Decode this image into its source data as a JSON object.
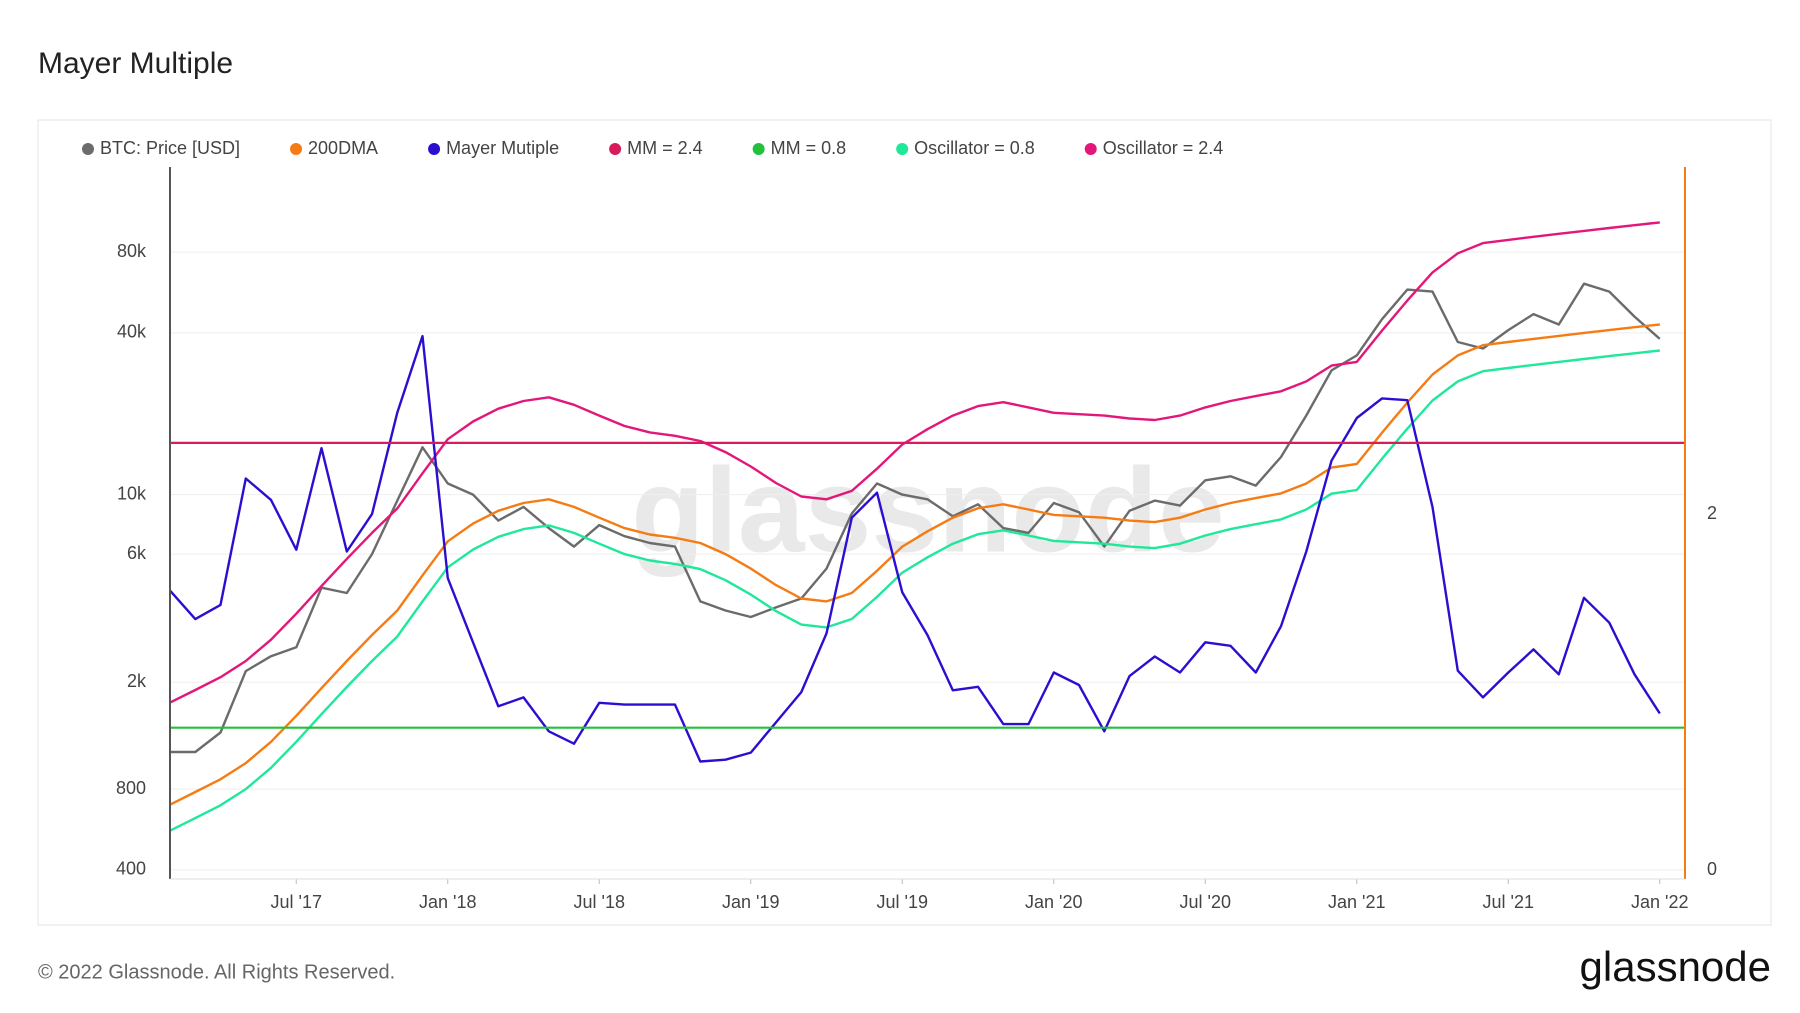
{
  "chart_data": {
    "type": "line",
    "title": "Mayer Multiple",
    "watermark": "glassnode",
    "footer": "© 2022 Glassnode. All Rights Reserved.",
    "logo": "glassnode",
    "log_y": true,
    "grid": true,
    "x": [
      "2017-02",
      "2017-03",
      "2017-04",
      "2017-05",
      "2017-06",
      "2017-07",
      "2017-08",
      "2017-09",
      "2017-10",
      "2017-11",
      "2017-12",
      "2018-01",
      "2018-02",
      "2018-03",
      "2018-04",
      "2018-05",
      "2018-06",
      "2018-07",
      "2018-08",
      "2018-09",
      "2018-10",
      "2018-11",
      "2018-12",
      "2019-01",
      "2019-02",
      "2019-03",
      "2019-04",
      "2019-05",
      "2019-06",
      "2019-07",
      "2019-08",
      "2019-09",
      "2019-10",
      "2019-11",
      "2019-12",
      "2020-01",
      "2020-02",
      "2020-03",
      "2020-04",
      "2020-05",
      "2020-06",
      "2020-07",
      "2020-08",
      "2020-09",
      "2020-10",
      "2020-11",
      "2020-12",
      "2021-01",
      "2021-02",
      "2021-03",
      "2021-04",
      "2021-05",
      "2021-06",
      "2021-07",
      "2021-08",
      "2021-09",
      "2021-10",
      "2021-11",
      "2021-12",
      "2022-01"
    ],
    "xlim": [
      "2017-02",
      "2022-02"
    ],
    "xticks": [
      {
        "value": "2017-07",
        "label": "Jul '17"
      },
      {
        "value": "2018-01",
        "label": "Jan '18"
      },
      {
        "value": "2018-07",
        "label": "Jul '18"
      },
      {
        "value": "2019-01",
        "label": "Jan '19"
      },
      {
        "value": "2019-07",
        "label": "Jul '19"
      },
      {
        "value": "2020-01",
        "label": "Jan '20"
      },
      {
        "value": "2020-07",
        "label": "Jul '20"
      },
      {
        "value": "2021-01",
        "label": "Jan '21"
      },
      {
        "value": "2021-07",
        "label": "Jul '21"
      },
      {
        "value": "2022-01",
        "label": "Jan '22"
      }
    ],
    "ylim": [
      370,
      166000
    ],
    "yticks": [
      400,
      800,
      {
        "value": 2000,
        "label": "2k"
      },
      {
        "value": 6000,
        "label": "6k"
      },
      {
        "value": 10000,
        "label": "10k"
      },
      {
        "value": 40000,
        "label": "40k"
      },
      {
        "value": 80000,
        "label": "80k"
      }
    ],
    "y2lim": [
      -0.05,
      3.95
    ],
    "y2ticks": [
      0,
      2
    ],
    "series": [
      {
        "name": "BTC: Price [USD]",
        "color": "#6b6b6b",
        "values": [
          1100,
          1100,
          1300,
          2200,
          2500,
          2700,
          4500,
          4300,
          6000,
          9500,
          15000,
          11000,
          10000,
          8000,
          9000,
          7500,
          6400,
          7700,
          7000,
          6600,
          6400,
          4000,
          3700,
          3500,
          3800,
          4100,
          5300,
          8500,
          11000,
          10000,
          9600,
          8300,
          9200,
          7500,
          7200,
          9300,
          8600,
          6400,
          8700,
          9500,
          9100,
          11300,
          11700,
          10800,
          13800,
          19700,
          29000,
          33000,
          45000,
          58000,
          57000,
          37000,
          35000,
          41000,
          47000,
          43000,
          61000,
          57000,
          46000,
          38000
        ]
      },
      {
        "name": "200DMA",
        "color": "#f57c14",
        "values": [
          700,
          780,
          870,
          1000,
          1200,
          1500,
          1900,
          2400,
          3000,
          3700,
          5000,
          6700,
          7800,
          8700,
          9300,
          9600,
          9000,
          8200,
          7500,
          7100,
          6900,
          6600,
          6000,
          5300,
          4600,
          4100,
          4000,
          4300,
          5200,
          6400,
          7300,
          8200,
          8900,
          9200,
          8800,
          8400,
          8300,
          8200,
          8000,
          7900,
          8200,
          8800,
          9300,
          9700,
          10100,
          11000,
          12600,
          13000,
          17000,
          22000,
          28000,
          33000,
          36000,
          37000,
          38000,
          39000,
          40000,
          41000,
          42000,
          43000
        ]
      },
      {
        "name": "Mayer Mutiple",
        "color": "#2b0fd1",
        "axis": "y2",
        "values": [
          1.57,
          1.41,
          1.49,
          2.2,
          2.08,
          1.8,
          2.37,
          1.79,
          2.0,
          2.57,
          3.0,
          1.64,
          1.28,
          0.92,
          0.97,
          0.78,
          0.71,
          0.94,
          0.93,
          0.93,
          0.93,
          0.61,
          0.62,
          0.66,
          0.83,
          1.0,
          1.33,
          1.98,
          2.12,
          1.56,
          1.32,
          1.01,
          1.03,
          0.82,
          0.82,
          1.11,
          1.04,
          0.78,
          1.09,
          1.2,
          1.11,
          1.28,
          1.26,
          1.11,
          1.37,
          1.79,
          2.3,
          2.54,
          2.65,
          2.64,
          2.04,
          1.12,
          0.97,
          1.11,
          1.24,
          1.1,
          1.53,
          1.39,
          1.1,
          0.88
        ]
      },
      {
        "name": "MM = 2.4",
        "color": "#d81b5a",
        "axis": "y2",
        "value": 2.4
      },
      {
        "name": "MM = 0.8",
        "color": "#22c03c",
        "axis": "y2",
        "value": 0.8
      },
      {
        "name": "Oscillator = 0.8",
        "color": "#1fe89a",
        "values": [
          560,
          624,
          696,
          800,
          960,
          1200,
          1520,
          1920,
          2400,
          2960,
          4000,
          5360,
          6240,
          6960,
          7440,
          7680,
          7200,
          6560,
          6000,
          5680,
          5520,
          5280,
          4800,
          4240,
          3680,
          3280,
          3200,
          3440,
          4160,
          5120,
          5840,
          6560,
          7120,
          7360,
          7040,
          6720,
          6640,
          6560,
          6400,
          6320,
          6560,
          7040,
          7440,
          7760,
          8080,
          8800,
          10080,
          10400,
          13600,
          17600,
          22400,
          26400,
          28800,
          29600,
          30400,
          31200,
          32000,
          32800,
          33600,
          34400
        ]
      },
      {
        "name": "Oscillator = 2.4",
        "color": "#e3177a",
        "values": [
          1680,
          1872,
          2088,
          2400,
          2880,
          3600,
          4560,
          5760,
          7200,
          8880,
          12000,
          16080,
          18720,
          20880,
          22320,
          23040,
          21600,
          19680,
          18000,
          17040,
          16560,
          15840,
          14400,
          12720,
          11040,
          9840,
          9600,
          10320,
          12480,
          15360,
          17520,
          19680,
          21360,
          22080,
          21120,
          20160,
          19920,
          19680,
          19200,
          18960,
          19680,
          21120,
          22320,
          23280,
          24240,
          26400,
          30240,
          31200,
          40800,
          52800,
          67200,
          79200,
          86400,
          88800,
          91200,
          93600,
          96000,
          98400,
          100800,
          103200
        ]
      }
    ]
  }
}
